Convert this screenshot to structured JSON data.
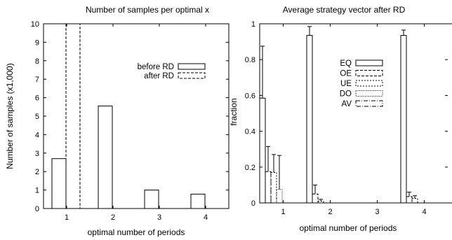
{
  "chart_data": [
    {
      "type": "bar",
      "title": "Number of samples per optimal x",
      "xlabel": "optimal number of periods",
      "ylabel": "Number of samples (x1,000)",
      "categories": [
        "1",
        "2",
        "3",
        "4"
      ],
      "ylim": [
        0,
        10
      ],
      "yticks": [
        "0",
        "1",
        "2",
        "3",
        "4",
        "5",
        "6",
        "7",
        "8",
        "9",
        "10"
      ],
      "legend_position": "top-right",
      "series": [
        {
          "name": "before RD",
          "style": "solid",
          "values": [
            2.7,
            5.55,
            1.0,
            0.78
          ]
        },
        {
          "name": "after RD",
          "style": "dashed",
          "values": [
            10.0,
            0.0,
            0.0,
            0.0
          ]
        }
      ]
    },
    {
      "type": "bar",
      "title": "Average strategy vector after RD",
      "xlabel": "optimal number of periods",
      "ylabel": "fraction",
      "categories": [
        "1",
        "2",
        "3",
        "4"
      ],
      "ylim": [
        0,
        1
      ],
      "yticks": [
        "0",
        "0.2",
        "0.4",
        "0.6",
        "0.8",
        "1"
      ],
      "legend_position": "top-center",
      "series": [
        {
          "name": "EQ",
          "style": "solid",
          "values": [
            0.585,
            0.935,
            0.0,
            0.935
          ],
          "errors": [
            0.29,
            0.05,
            0.0,
            0.03
          ]
        },
        {
          "name": "OE",
          "style": "dashed",
          "values": [
            0.175,
            0.05,
            0.0,
            0.035
          ],
          "errors": [
            0.14,
            0.05,
            0.0,
            0.025
          ]
        },
        {
          "name": "UE",
          "style": "dotted",
          "values": [
            0.17,
            0.01,
            0.0,
            0.025
          ],
          "errors": [
            0.1,
            0.01,
            0.0,
            0.015
          ]
        },
        {
          "name": "DO",
          "style": "fine-dotted",
          "values": [
            0.075,
            0.0,
            0.0,
            0.0
          ],
          "errors": [
            0.19,
            0.0,
            0.0,
            0.0
          ]
        },
        {
          "name": "AV",
          "style": "dashdot",
          "values": [
            0.0,
            0.0,
            0.0,
            0.0
          ],
          "errors": [
            0.0,
            0.0,
            0.0,
            0.0
          ]
        }
      ]
    }
  ]
}
